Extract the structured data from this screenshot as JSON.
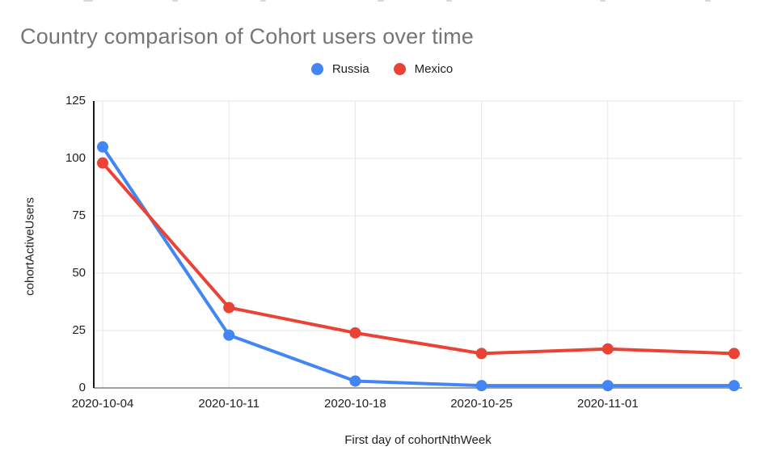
{
  "title": "Country comparison of Cohort users over time",
  "legend": {
    "items": [
      {
        "label": "Russia",
        "color": "#4285F4"
      },
      {
        "label": "Mexico",
        "color": "#EA4335"
      }
    ]
  },
  "chart_data": {
    "type": "line",
    "title": "Country comparison of Cohort users over time",
    "xlabel": "First day of cohortNthWeek",
    "ylabel": "cohortActiveUsers",
    "x_tick_labels": [
      "2020-10-04",
      "2020-10-11",
      "2020-10-18",
      "2020-10-25",
      "2020-11-01",
      ""
    ],
    "series": [
      {
        "name": "Russia",
        "color": "#4285F4",
        "values": [
          105,
          23,
          3,
          1,
          1,
          1
        ]
      },
      {
        "name": "Mexico",
        "color": "#EA4335",
        "values": [
          98,
          35,
          24,
          15,
          17,
          15
        ]
      }
    ],
    "ylim": [
      0,
      125
    ],
    "y_ticks": [
      0,
      25,
      50,
      75,
      100,
      125
    ],
    "grid": true,
    "legend_position": "top",
    "marker_radius": 7,
    "line_width": 4,
    "colors": {
      "grid": "#e6e6e6",
      "baseline": "#808080",
      "y_axis": "#1a1a1a",
      "title_text": "#757575",
      "tick_text": "#202124",
      "background": "#ffffff"
    }
  }
}
